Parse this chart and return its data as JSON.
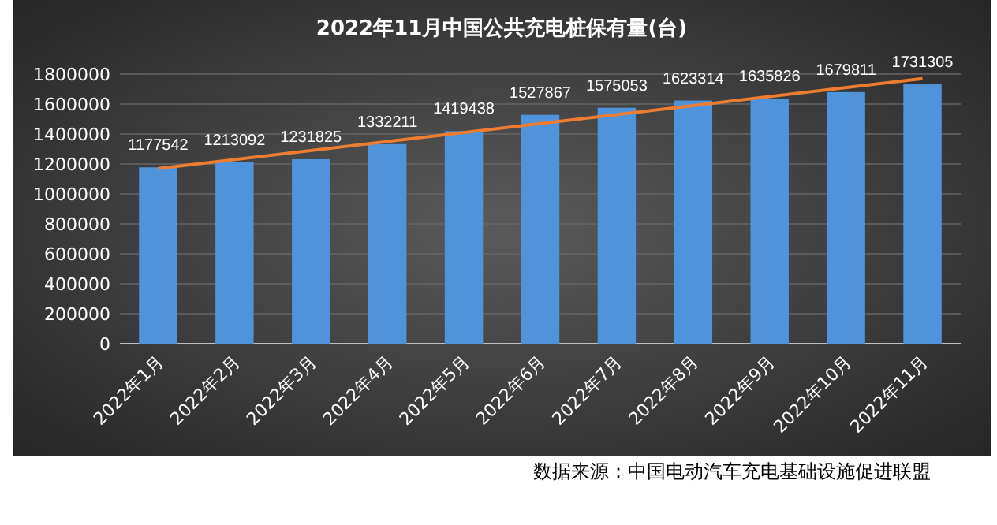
{
  "chart_data": {
    "type": "bar",
    "title": "2022年11月中国公共充电桩保有量(台)",
    "categories": [
      "2022年1月",
      "2022年2月",
      "2022年3月",
      "2022年4月",
      "2022年5月",
      "2022年6月",
      "2022年7月",
      "2022年8月",
      "2022年9月",
      "2022年10月",
      "2022年11月"
    ],
    "series": [
      {
        "color": "#4f93db",
        "values": [
          1177542,
          1213092,
          1231825,
          1332211,
          1419438,
          1527867,
          1575053,
          1623314,
          1635826,
          1679811,
          1731305
        ],
        "value_labels": [
          "1177542",
          "1213092",
          "1231825",
          "1332211",
          "1419438",
          "1527867",
          "1575053",
          "1623314",
          "1635826",
          "1679811",
          "1731305"
        ]
      },
      {
        "type": "line",
        "color": "#ed7d31",
        "x": [
          "2022年1月",
          "2022年11月"
        ],
        "values": [
          1170000,
          1770000
        ]
      }
    ],
    "ylim": [
      0,
      1800000
    ],
    "yticks": [
      0,
      200000,
      400000,
      600000,
      800000,
      1000000,
      1200000,
      1400000,
      1600000,
      1800000
    ],
    "grid": "y",
    "annotations": [
      "数据来源：中国电动汽车充电基础设施促进联盟"
    ]
  }
}
